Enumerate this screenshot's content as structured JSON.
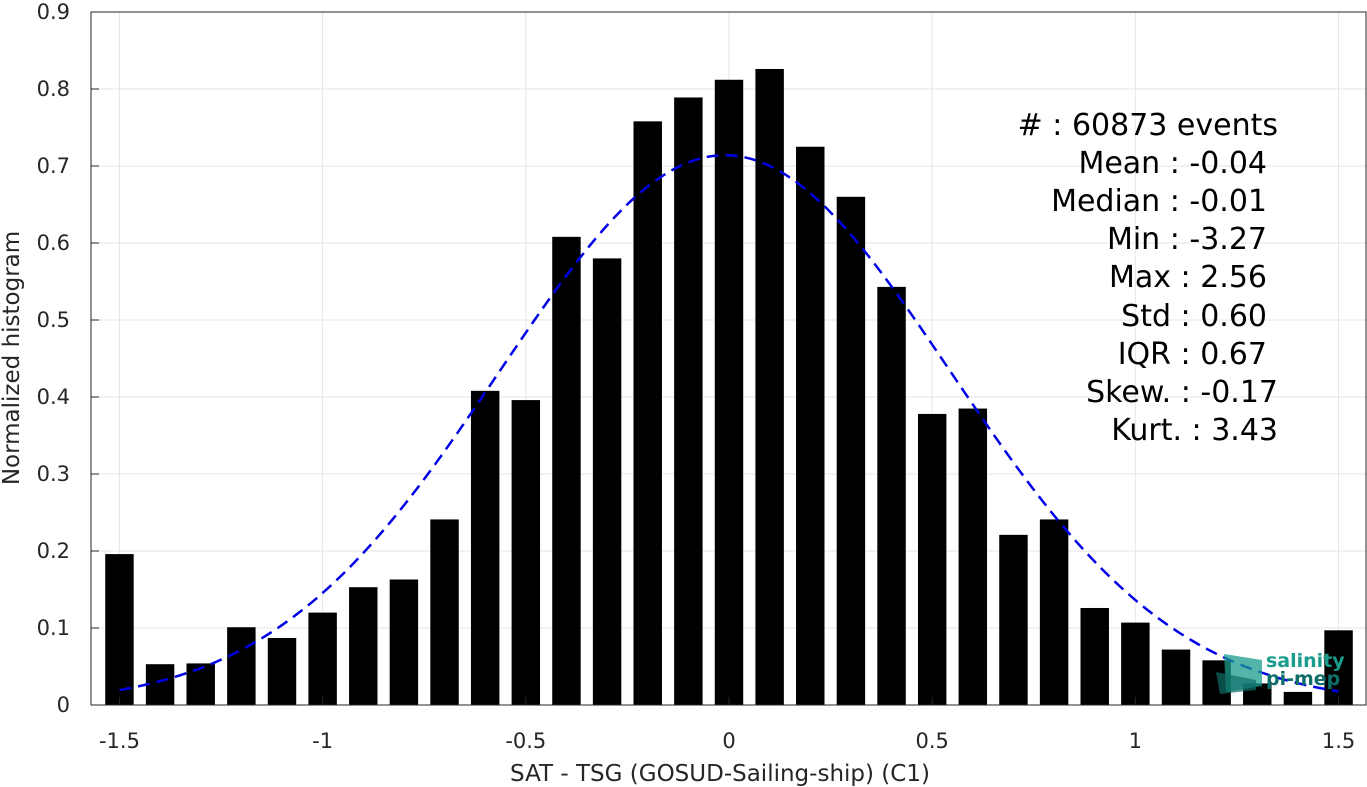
{
  "chart_data": {
    "type": "bar",
    "xlabel": "SAT - TSG (GOSUD-Sailing-ship) (C1)",
    "ylabel": "Normalized histogram",
    "xlim": [
      -1.57,
      1.57
    ],
    "ylim": [
      0,
      0.9
    ],
    "xticks": [
      -1.5,
      -1,
      -0.5,
      0,
      0.5,
      1,
      1.5
    ],
    "xtick_labels": [
      "-1.5",
      "-1",
      "-0.5",
      "0",
      "0.5",
      "1",
      "1.5"
    ],
    "yticks": [
      0,
      0.1,
      0.2,
      0.3,
      0.4,
      0.5,
      0.6,
      0.7,
      0.8,
      0.9
    ],
    "ytick_labels": [
      "0",
      "0.1",
      "0.2",
      "0.3",
      "0.4",
      "0.5",
      "0.6",
      "0.7",
      "0.8",
      "0.9"
    ],
    "grid": true,
    "bar_color": "#000000",
    "fit_color": "#0000e6",
    "bin_width": 0.1,
    "bars": {
      "x": [
        -1.5,
        -1.4,
        -1.3,
        -1.2,
        -1.1,
        -1.0,
        -0.9,
        -0.8,
        -0.7,
        -0.6,
        -0.5,
        -0.4,
        -0.3,
        -0.2,
        -0.1,
        0.0,
        0.1,
        0.2,
        0.3,
        0.4,
        0.5,
        0.6,
        0.7,
        0.8,
        0.9,
        1.0,
        1.1,
        1.2,
        1.3,
        1.4,
        1.5
      ],
      "values": [
        0.196,
        0.053,
        0.054,
        0.101,
        0.087,
        0.12,
        0.153,
        0.163,
        0.241,
        0.408,
        0.396,
        0.608,
        0.58,
        0.758,
        0.789,
        0.812,
        0.826,
        0.725,
        0.66,
        0.543,
        0.378,
        0.385,
        0.221,
        0.241,
        0.126,
        0.107,
        0.072,
        0.058,
        0.028,
        0.017,
        0.097
      ]
    },
    "fit": {
      "type": "normal",
      "mean": -0.01,
      "std": 0.555,
      "peak": 0.714,
      "x_range": [
        -1.5,
        1.5
      ]
    },
    "stats": [
      "#  : 60873 events",
      "Mean : -0.04",
      "Median : -0.01",
      "Min : -3.27",
      "Max : 2.56",
      "Std : 0.60",
      "IQR : 0.67",
      "Skew. : -0.17",
      "Kurt. : 3.43"
    ]
  },
  "logo": {
    "line1": "salinity",
    "line2": "pi-mep",
    "color": "#1a9c8c"
  }
}
